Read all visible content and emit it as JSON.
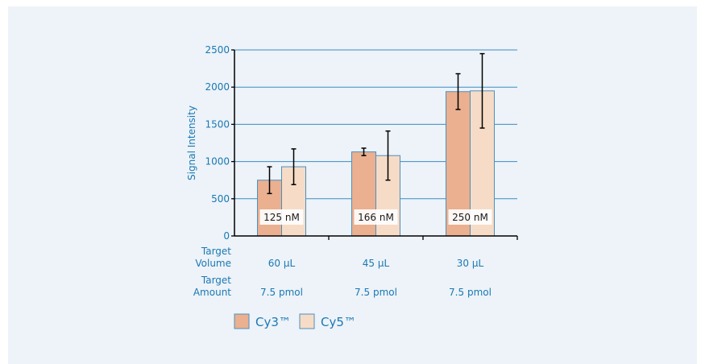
{
  "chart_data": {
    "type": "bar",
    "ylabel": "Signal Intensity",
    "ylim": [
      0,
      2500
    ],
    "yticks": [
      0,
      500,
      1000,
      1500,
      2000,
      2500
    ],
    "grid": true,
    "categories": [
      "60 µL",
      "45 µL",
      "30 µL"
    ],
    "row_labels": [
      {
        "label": [
          "Target",
          "Volume"
        ],
        "values": [
          "60 µL",
          "45 µL",
          "30 µL"
        ]
      },
      {
        "label": [
          "Target",
          "Amount"
        ],
        "values": [
          "7.5 pmol",
          "7.5 pmol",
          "7.5 pmol"
        ]
      }
    ],
    "bar_labels": [
      "125 nM",
      "166 nM",
      "250 nM"
    ],
    "series": [
      {
        "name": "Cy3™",
        "color": "#eab090",
        "values": [
          750,
          1130,
          1940
        ],
        "err_low": [
          180,
          50,
          240
        ],
        "err_high": [
          180,
          50,
          240
        ]
      },
      {
        "name": "Cy5™",
        "color": "#f6dcc6",
        "values": [
          930,
          1080,
          1950
        ],
        "err_low": [
          240,
          330,
          500
        ],
        "err_high": [
          240,
          330,
          500
        ]
      }
    ],
    "legend_position": "bottom-left",
    "colors": {
      "axis_text": "#1a78b4",
      "grid": "#3d8cc4",
      "bar_border": "#4d8fc0"
    }
  }
}
